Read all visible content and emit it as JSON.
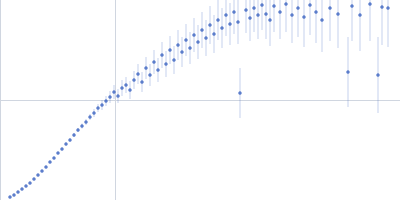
{
  "chart_data": {
    "type": "scatter",
    "color": "#3a62c0",
    "grid": true,
    "tick_labels": false,
    "xlim": [
      0,
      400
    ],
    "xticks": [
      115
    ],
    "ylim": [
      0,
      200
    ],
    "yticks": [
      100
    ],
    "x": [
      10,
      14,
      18,
      22,
      26,
      30,
      34,
      38,
      42,
      46,
      50,
      54,
      58,
      62,
      66,
      70,
      74,
      78,
      82,
      86,
      90,
      94,
      98,
      102,
      106,
      110,
      114,
      118,
      122,
      126,
      130,
      134,
      138,
      142,
      146,
      150,
      154,
      158,
      162,
      166,
      170,
      174,
      178,
      182,
      186,
      190,
      194,
      198,
      202,
      206,
      210,
      214,
      218,
      222,
      226,
      230,
      234,
      238,
      240,
      246,
      250,
      254,
      258,
      262,
      266,
      270,
      274,
      280,
      286,
      292,
      298,
      304,
      310,
      316,
      322,
      330,
      338,
      348,
      352,
      360,
      370,
      378,
      382,
      388
    ],
    "values": [
      3,
      5,
      8,
      11,
      14,
      17,
      21,
      25,
      29,
      33,
      38,
      42,
      47,
      51,
      56,
      60,
      65,
      70,
      74,
      78,
      83,
      87,
      92,
      95,
      99,
      103,
      108,
      104,
      112,
      115,
      110,
      120,
      126,
      118,
      132,
      125,
      138,
      130,
      145,
      136,
      150,
      140,
      155,
      148,
      160,
      152,
      165,
      158,
      170,
      162,
      175,
      166,
      180,
      172,
      185,
      176,
      188,
      178,
      107,
      190,
      182,
      192,
      185,
      195,
      186,
      180,
      194,
      188,
      196,
      185,
      192,
      183,
      195,
      188,
      180,
      192,
      186,
      128,
      194,
      185,
      196,
      125,
      193,
      192
    ],
    "errors": [
      0.5,
      0.5,
      0.5,
      0.5,
      0.6,
      0.6,
      0.7,
      0.7,
      0.8,
      0.8,
      0.9,
      1,
      1,
      1.2,
      1.3,
      1.5,
      2,
      2,
      2.5,
      3,
      3,
      4,
      4,
      5,
      5,
      6,
      7,
      7,
      8,
      8,
      9,
      9,
      10,
      10,
      11,
      11,
      12,
      12,
      13,
      13,
      14,
      14,
      15,
      15,
      16,
      16,
      17,
      17,
      18,
      18,
      19,
      19,
      20,
      20,
      21,
      21,
      22,
      22,
      25,
      23,
      23,
      24,
      24,
      25,
      25,
      26,
      26,
      27,
      28,
      28,
      29,
      30,
      30,
      31,
      32,
      33,
      34,
      35,
      35,
      36,
      37,
      38,
      38,
      39
    ]
  }
}
